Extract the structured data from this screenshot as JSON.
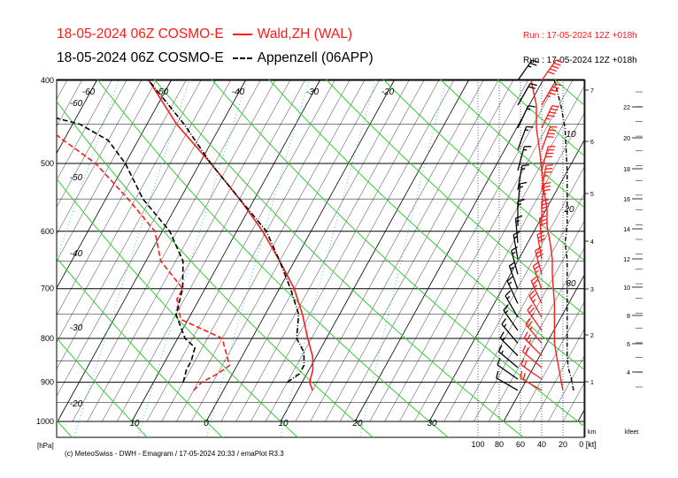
{
  "header": {
    "line1_left": "18-05-2024 06Z COSMO-E",
    "line1_series": "Wald,ZH (WAL)",
    "line1_run": "Run : 17-05-2024 12Z +018h",
    "line2_left": "18-05-2024 06Z COSMO-E",
    "line2_series": "Appenzell (06APP)",
    "line2_run": "Run : 17-05-2024 12Z +018h"
  },
  "footer": "(c) MeteoSwiss - DWH - Emagram / 17-05-2024  20:33 / emaPlot R3.3",
  "colors": {
    "wald": "#ff1a1a",
    "appenzell": "#000000",
    "dry_adiabat": "#33cc33",
    "mixing_ratio": "#33cccc",
    "isotherm": "#000000"
  },
  "chart_data": {
    "type": "line",
    "title": "18-05-2024 06Z COSMO-E",
    "xlabel": "",
    "ylabel": "[hPa]",
    "y_scale": "log",
    "ylim": [
      1000,
      400
    ],
    "xlim": [
      -60,
      35
    ],
    "pressure_ticks": [
      1000,
      900,
      800,
      700,
      600,
      500,
      400
    ],
    "temperature_ticks": [
      "-60",
      "-50",
      "-40",
      "-30",
      "-20",
      "10",
      "0",
      "10",
      "20",
      "30"
    ],
    "km_ticks": [
      "1",
      "2",
      "3",
      "4",
      "5",
      "6",
      "7"
    ],
    "kfeet_ticks": [
      "4",
      "6",
      "8",
      "10",
      "12",
      "14",
      "16",
      "18",
      "20",
      "22"
    ],
    "km_label": "km",
    "kfeet_label": "kfeet",
    "wind_speed_ticks": [
      "100",
      "80",
      "60",
      "40",
      "20",
      "0 [kt]"
    ],
    "wind_speed_labels": [
      "10",
      "20",
      "30"
    ],
    "series": [
      {
        "name": "Wald,ZH (WAL)",
        "temperature": {
          "p": [
            920,
            900,
            870,
            840,
            800,
            750,
            700,
            650,
            600,
            550,
            500,
            450,
            400
          ],
          "t": [
            12.0,
            11.0,
            10.5,
            9.5,
            7.5,
            5.0,
            2.0,
            -2.0,
            -6.5,
            -12.0,
            -18.5,
            -26.0,
            -33.0
          ]
        },
        "dewpoint": {
          "p": [
            920,
            900,
            880,
            860,
            840,
            800,
            760,
            720,
            700,
            650,
            600,
            550,
            500,
            470,
            450,
            430,
            400
          ],
          "t": [
            -4.0,
            -3.5,
            -2.0,
            -1.0,
            -2.0,
            -4.0,
            -11.0,
            -13.0,
            -13.0,
            -18.0,
            -21.0,
            -27.0,
            -34.0,
            -40.0,
            -44.0,
            -52.0,
            -58.0
          ]
        },
        "wind_speeds_kt": [
          20,
          22,
          24,
          26,
          28,
          28,
          28,
          28,
          29,
          30,
          30,
          32,
          35,
          35,
          38,
          40,
          42,
          45,
          45,
          50
        ]
      },
      {
        "name": "Appenzell (06APP)",
        "temperature": {
          "p": [
            900,
            880,
            860,
            830,
            800,
            750,
            700,
            650,
            600,
            550,
            500,
            450,
            400
          ],
          "t": [
            8.0,
            9.0,
            9.0,
            8.0,
            6.0,
            4.5,
            1.5,
            -2.0,
            -6.0,
            -12.0,
            -18.5,
            -25.0,
            -33.0
          ]
        },
        "dewpoint": {
          "p": [
            900,
            870,
            850,
            820,
            800,
            750,
            700,
            650,
            600,
            550,
            500,
            470,
            450,
            430,
            400
          ],
          "t": [
            -6.0,
            -6.5,
            -6.5,
            -7.0,
            -9.0,
            -12.0,
            -13.0,
            -15.0,
            -19.0,
            -25.0,
            -30.0,
            -34.0,
            -39.0,
            -49.0,
            -56.0
          ]
        },
        "wind_speeds_kt": [
          10,
          12,
          15,
          16,
          16,
          16,
          16,
          16,
          16,
          16,
          16,
          18,
          16,
          16,
          16,
          16,
          17,
          18,
          22,
          28
        ]
      }
    ]
  }
}
